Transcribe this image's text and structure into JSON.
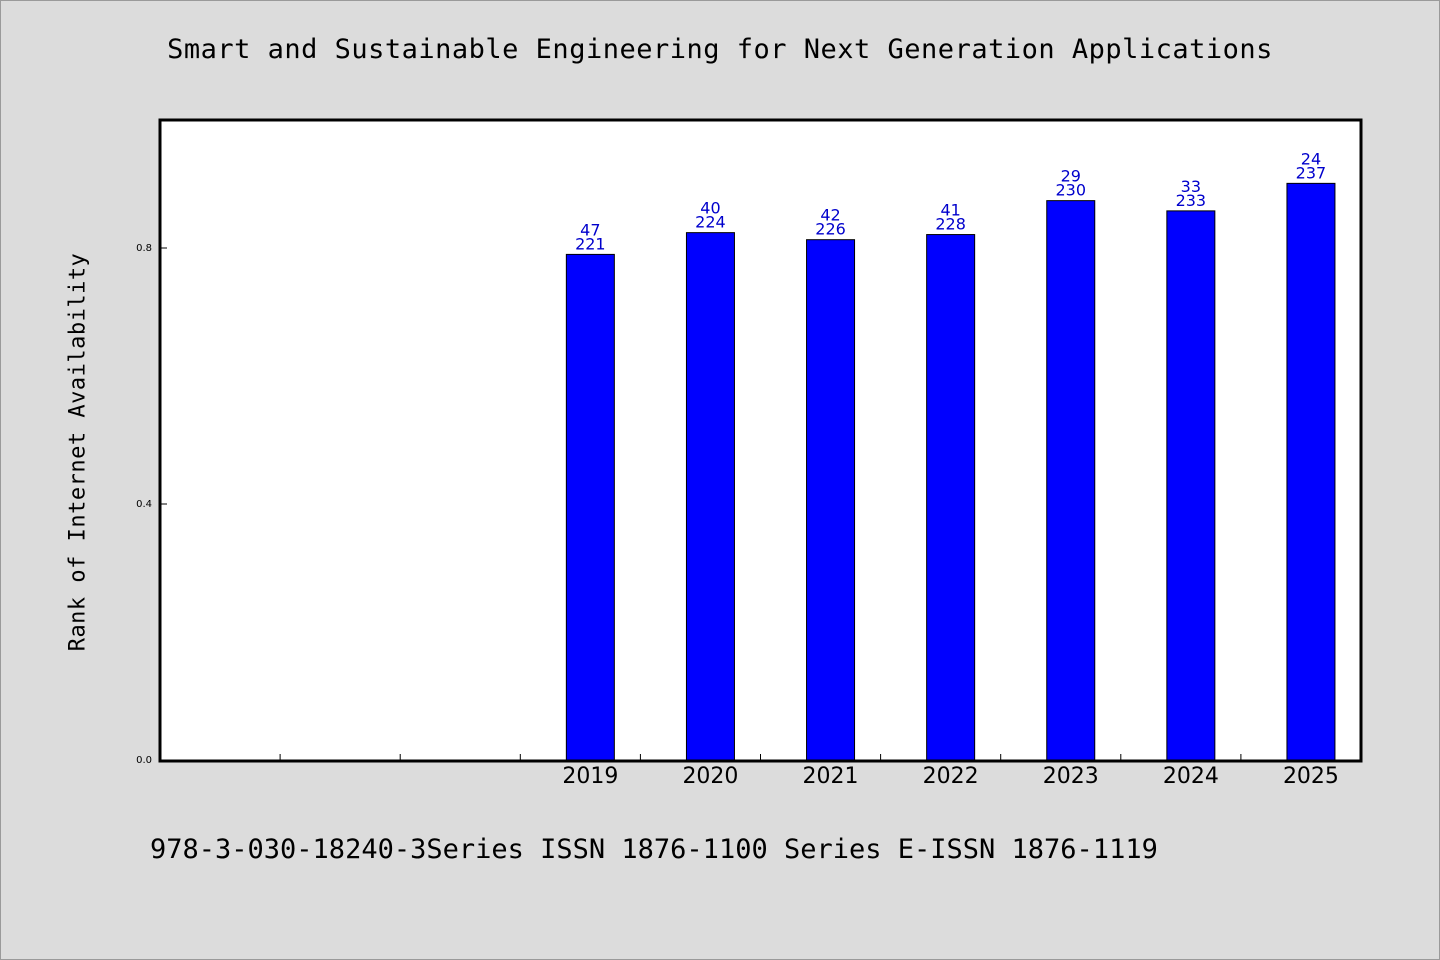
{
  "chart_data": {
    "type": "bar",
    "title": "Smart and Sustainable Engineering for Next Generation Applications",
    "xlabel": "",
    "ylabel": "Rank of Internet Availability",
    "ylim": [
      0.0,
      1.0
    ],
    "yticks": [
      0.0,
      0.4,
      0.8
    ],
    "ytick_labels": [
      "0.0",
      "0.4",
      "0.8"
    ],
    "categories": [
      "",
      "",
      "",
      "2019",
      "2020",
      "2021",
      "2022",
      "2023",
      "2024",
      "2025"
    ],
    "values": [
      null,
      null,
      null,
      0.79,
      0.824,
      0.813,
      0.821,
      0.874,
      0.858,
      0.901
    ],
    "annotations": [
      null,
      null,
      null,
      [
        "47",
        "221"
      ],
      [
        "40",
        "224"
      ],
      [
        "42",
        "226"
      ],
      [
        "41",
        "228"
      ],
      [
        "29",
        "230"
      ],
      [
        "33",
        "233"
      ],
      [
        "24",
        "237"
      ]
    ],
    "grid": false,
    "legend": "none",
    "colors": {
      "bar": "#0000ff",
      "annotation": "#0000cc"
    }
  },
  "footer": "978-3-030-18240-3Series ISSN 1876-1100 Series E-ISSN 1876-1119"
}
